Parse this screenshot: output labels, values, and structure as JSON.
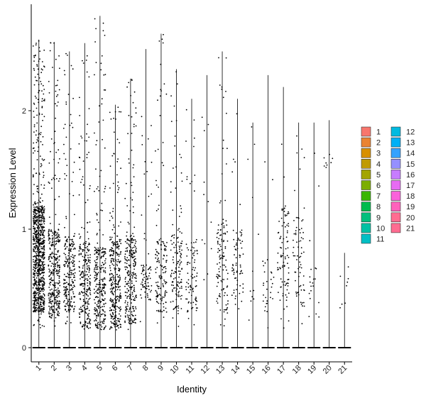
{
  "chart_data": {
    "type": "violin",
    "xlabel": "Identity",
    "ylabel": "Expression Level",
    "categories": [
      "1",
      "2",
      "3",
      "4",
      "5",
      "6",
      "7",
      "8",
      "9",
      "10",
      "11",
      "12",
      "13",
      "14",
      "15",
      "16",
      "17",
      "18",
      "19",
      "20",
      "21"
    ],
    "ylim": [
      -0.2,
      2.9
    ],
    "yticks": [
      0,
      1,
      2
    ],
    "max_values": [
      2.6,
      2.58,
      2.5,
      2.57,
      2.8,
      2.05,
      2.27,
      2.52,
      2.65,
      2.35,
      2.1,
      2.3,
      2.5,
      2.1,
      1.9,
      2.3,
      2.2,
      1.9,
      1.9,
      1.92,
      0.8
    ],
    "dense_band": [
      [
        0.3,
        1.2
      ],
      [
        0.25,
        1.0
      ],
      [
        0.3,
        0.95
      ],
      [
        0.15,
        0.9
      ],
      [
        0.15,
        0.85
      ],
      [
        0.15,
        0.95
      ],
      [
        0.2,
        0.95
      ],
      [
        0.4,
        0.7
      ],
      [
        0.3,
        0.9
      ],
      [
        0.3,
        1.0
      ],
      [
        0.3,
        0.9
      ],
      [
        0.0,
        0.0
      ],
      [
        0.3,
        1.1
      ],
      [
        0.3,
        1.0
      ],
      [
        0.0,
        0.0
      ],
      [
        0.3,
        0.8
      ],
      [
        0.4,
        1.2
      ],
      [
        0.35,
        1.1
      ],
      [
        0.25,
        0.7
      ],
      [
        1.5,
        1.65
      ],
      [
        0.15,
        0.8
      ]
    ],
    "cell_counts": [
      900,
      350,
      250,
      260,
      300,
      320,
      280,
      80,
      150,
      140,
      90,
      12,
      120,
      70,
      12,
      30,
      90,
      70,
      20,
      8,
      8
    ],
    "legend": {
      "placement": "right",
      "entries": [
        {
          "label": "1",
          "color": "#F8766D"
        },
        {
          "label": "2",
          "color": "#EA8331"
        },
        {
          "label": "3",
          "color": "#D89000"
        },
        {
          "label": "4",
          "color": "#C09B00"
        },
        {
          "label": "5",
          "color": "#A3A500"
        },
        {
          "label": "6",
          "color": "#7CAE00"
        },
        {
          "label": "7",
          "color": "#39B600"
        },
        {
          "label": "8",
          "color": "#00BB4E"
        },
        {
          "label": "9",
          "color": "#00BF7D"
        },
        {
          "label": "10",
          "color": "#00C1A3"
        },
        {
          "label": "11",
          "color": "#00BFC4"
        },
        {
          "label": "12",
          "color": "#00BAE0"
        },
        {
          "label": "13",
          "color": "#00B0F6"
        },
        {
          "label": "14",
          "color": "#35A2FF"
        },
        {
          "label": "15",
          "color": "#9590FF"
        },
        {
          "label": "16",
          "color": "#C77CFF"
        },
        {
          "label": "17",
          "color": "#E76BF3"
        },
        {
          "label": "18",
          "color": "#FA62DB"
        },
        {
          "label": "19",
          "color": "#FF62BC"
        },
        {
          "label": "20",
          "color": "#FF6C91"
        },
        {
          "label": "21",
          "color": "#FF6C91"
        }
      ]
    }
  }
}
